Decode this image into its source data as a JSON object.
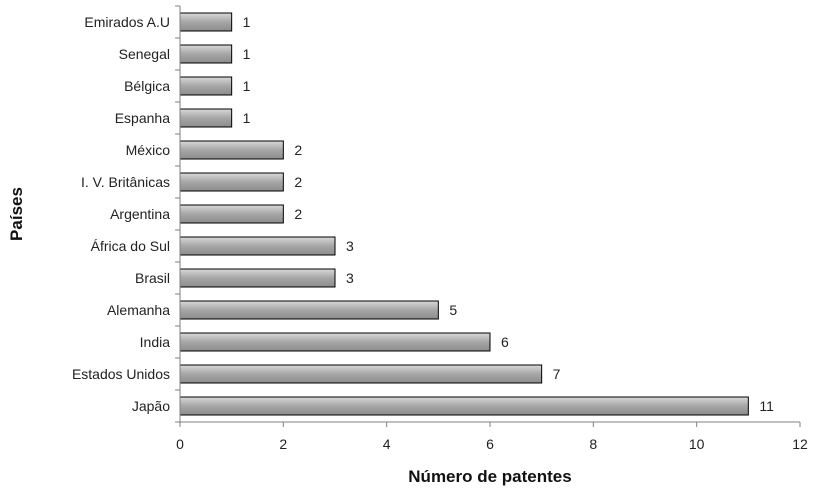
{
  "chart_data": {
    "type": "bar",
    "orientation": "horizontal",
    "title": "",
    "xlabel": "Número de patentes",
    "ylabel": "Países",
    "xlim": [
      0,
      12
    ],
    "xticks": [
      0,
      2,
      4,
      6,
      8,
      10,
      12
    ],
    "grid": false,
    "legend": "none",
    "bar_color": "#a6a6a6",
    "categories": [
      "Emirados A.U",
      "Senegal",
      "Bélgica",
      "Espanha",
      "México",
      "I. V. Britânicas",
      "Argentina",
      "África do Sul",
      "Brasil",
      "Alemanha",
      "India",
      "Estados Unidos",
      "Japão"
    ],
    "values": [
      1,
      1,
      1,
      1,
      2,
      2,
      2,
      3,
      3,
      5,
      6,
      7,
      11
    ]
  }
}
